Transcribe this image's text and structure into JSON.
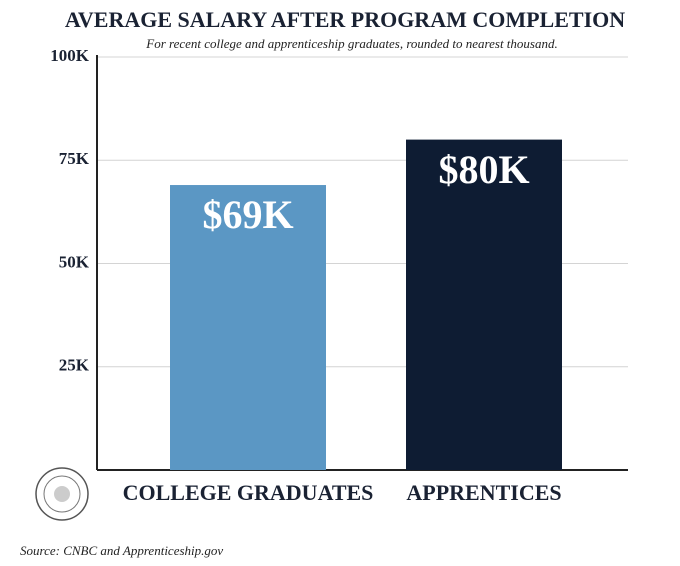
{
  "chart_data": {
    "type": "bar",
    "title": "AVERAGE SALARY AFTER PROGRAM COMPLETION",
    "subtitle": "For recent college and apprenticeship graduates, rounded to nearest thousand.",
    "source": "Source: CNBC and Apprenticeship.gov",
    "categories": [
      "COLLEGE GRADUATES",
      "APPRENTICES"
    ],
    "values": [
      69000,
      80000
    ],
    "value_labels": [
      "$69K",
      "$80K"
    ],
    "colors": [
      "#5b97c4",
      "#0e1c33"
    ],
    "ylim": [
      0,
      100000
    ],
    "yticks": [
      {
        "value": 25000,
        "label": "25K"
      },
      {
        "value": 50000,
        "label": "50K"
      },
      {
        "value": 75000,
        "label": "75K"
      },
      {
        "value": 100000,
        "label": "100K"
      }
    ],
    "grid": true
  }
}
